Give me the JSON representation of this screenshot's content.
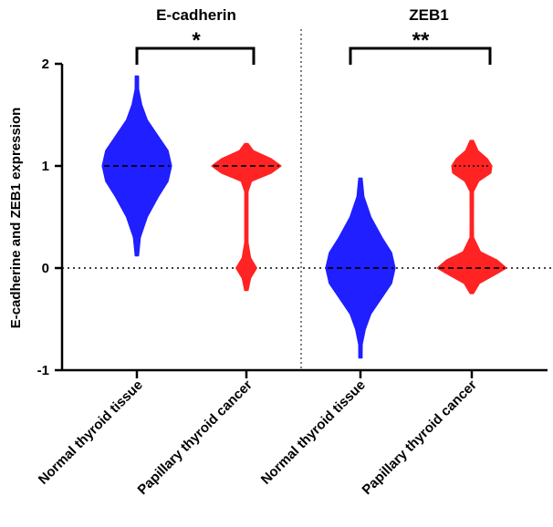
{
  "chart_data": {
    "type": "violin",
    "ylabel": "E-cadherine and ZEB1 expression",
    "ylim": [
      -1,
      2
    ],
    "yticks": [
      -1,
      0,
      1,
      2
    ],
    "reference_line_y": 0,
    "panels": [
      {
        "title": "E-cadherin",
        "significance": "*",
        "groups": [
          {
            "name": "Normal thyroid tissue",
            "color": "#1f1fff",
            "median": 1.0,
            "quartiles": [],
            "range": [
              0.12,
              1.88
            ],
            "density": [
              [
                0.12,
                0.02
              ],
              [
                0.3,
                0.1
              ],
              [
                0.5,
                0.3
              ],
              [
                0.7,
                0.62
              ],
              [
                0.85,
                0.9
              ],
              [
                1.0,
                1.0
              ],
              [
                1.15,
                0.9
              ],
              [
                1.3,
                0.6
              ],
              [
                1.45,
                0.3
              ],
              [
                1.6,
                0.14
              ],
              [
                1.75,
                0.05
              ],
              [
                1.88,
                0.01
              ]
            ]
          },
          {
            "name": "Papillary thyroid cancer",
            "color": "#ff2323",
            "median": 1.0,
            "quartiles": [],
            "range": [
              -0.22,
              1.22
            ],
            "density": [
              [
                -0.22,
                0.01
              ],
              [
                -0.1,
                0.12
              ],
              [
                0.0,
                0.3
              ],
              [
                0.1,
                0.12
              ],
              [
                0.25,
                0.045
              ],
              [
                0.5,
                0.04
              ],
              [
                0.75,
                0.045
              ],
              [
                0.85,
                0.15
              ],
              [
                0.93,
                0.72
              ],
              [
                1.0,
                1.0
              ],
              [
                1.07,
                0.72
              ],
              [
                1.15,
                0.2
              ],
              [
                1.22,
                0.02
              ]
            ]
          }
        ]
      },
      {
        "title": "ZEB1",
        "significance": "**",
        "groups": [
          {
            "name": "Normal thyroid tissue",
            "color": "#1f1fff",
            "median": 0.0,
            "quartiles": [],
            "range": [
              -0.88,
              0.88
            ],
            "density": [
              [
                -0.88,
                0.01
              ],
              [
                -0.75,
                0.05
              ],
              [
                -0.6,
                0.14
              ],
              [
                -0.45,
                0.3
              ],
              [
                -0.3,
                0.6
              ],
              [
                -0.15,
                0.9
              ],
              [
                0.0,
                1.0
              ],
              [
                0.15,
                0.9
              ],
              [
                0.3,
                0.62
              ],
              [
                0.5,
                0.3
              ],
              [
                0.7,
                0.1
              ],
              [
                0.88,
                0.02
              ]
            ]
          },
          {
            "name": "Papillary thyroid cancer",
            "color": "#ff2323",
            "median": 0.0,
            "quartiles": [
              1.0
            ],
            "range": [
              -0.25,
              1.25
            ],
            "density": [
              [
                -0.25,
                0.02
              ],
              [
                -0.15,
                0.22
              ],
              [
                -0.05,
                0.75
              ],
              [
                0.0,
                1.0
              ],
              [
                0.08,
                0.72
              ],
              [
                0.16,
                0.25
              ],
              [
                0.3,
                0.05
              ],
              [
                0.5,
                0.04
              ],
              [
                0.75,
                0.05
              ],
              [
                0.85,
                0.2
              ],
              [
                0.93,
                0.55
              ],
              [
                1.0,
                0.58
              ],
              [
                1.07,
                0.45
              ],
              [
                1.15,
                0.18
              ],
              [
                1.25,
                0.02
              ]
            ]
          }
        ]
      }
    ]
  }
}
